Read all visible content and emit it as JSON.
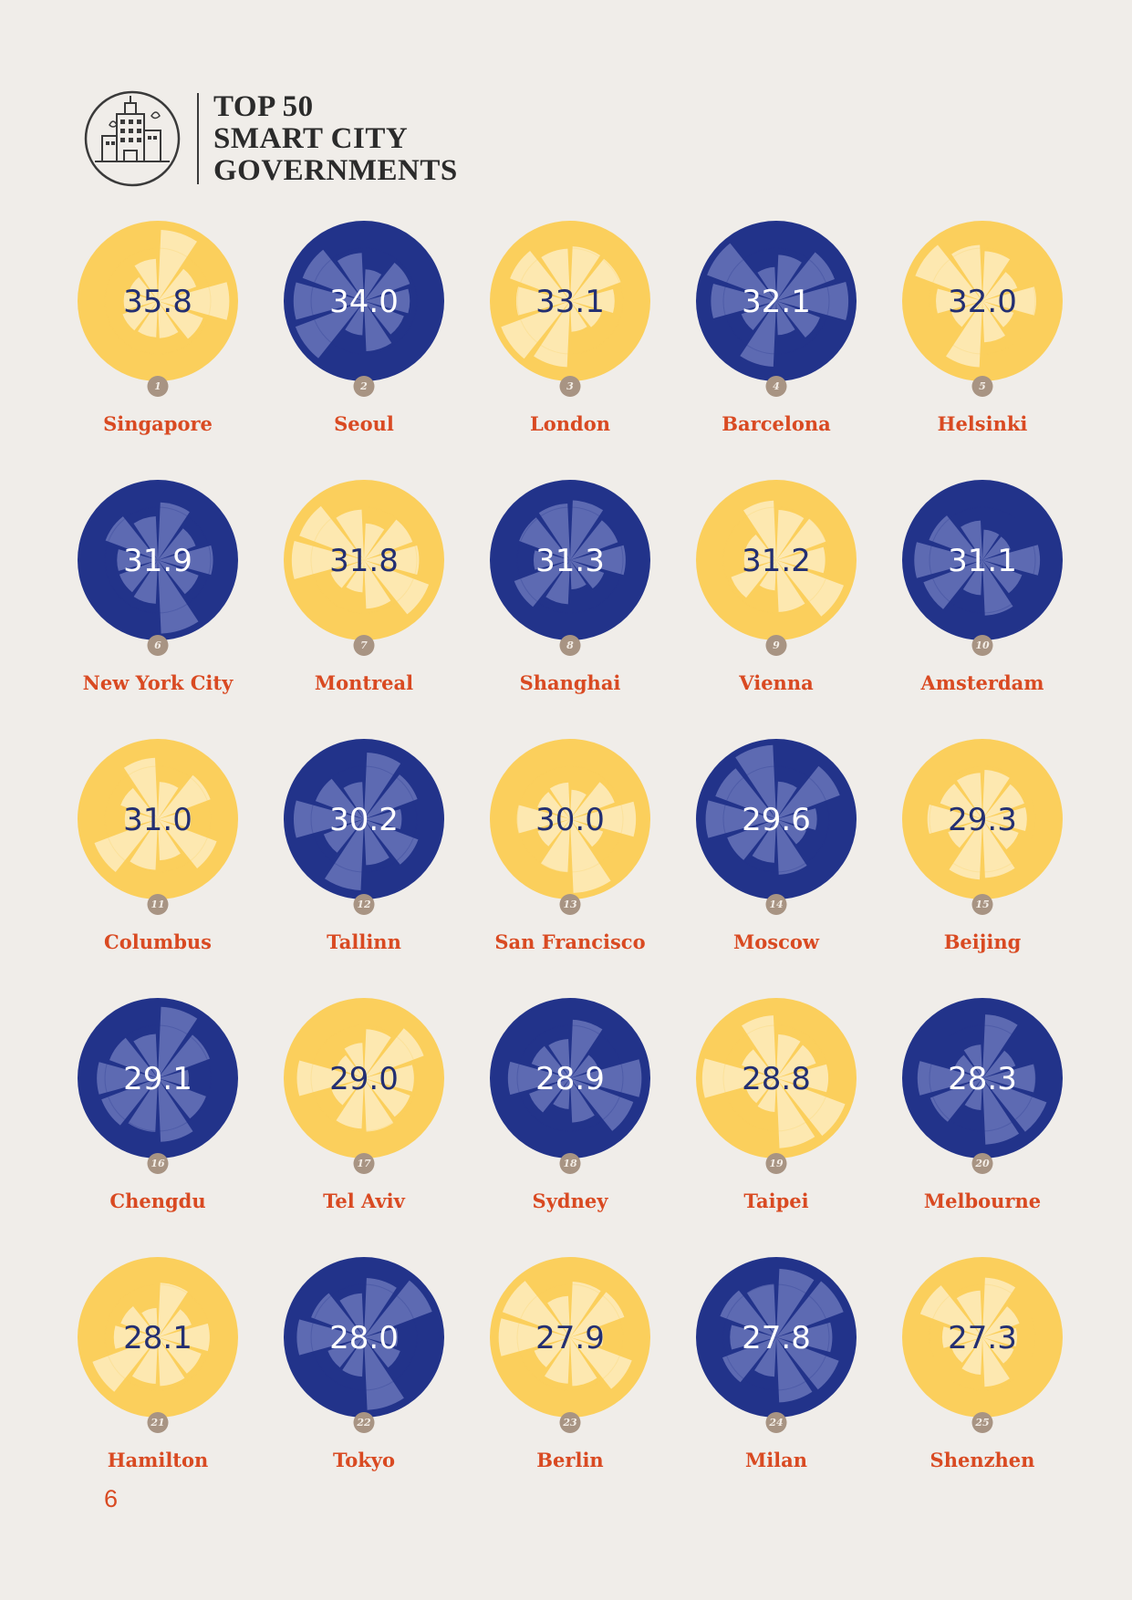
{
  "header": {
    "title_lines": [
      "TOP 50",
      "SMART CITY",
      "GOVERNMENTS"
    ]
  },
  "cities": [
    {
      "rank": "1",
      "name": "Singapore",
      "score": "35.8",
      "theme": "yellow"
    },
    {
      "rank": "2",
      "name": "Seoul",
      "score": "34.0",
      "theme": "blue"
    },
    {
      "rank": "3",
      "name": "London",
      "score": "33.1",
      "theme": "yellow"
    },
    {
      "rank": "4",
      "name": "Barcelona",
      "score": "32.1",
      "theme": "blue"
    },
    {
      "rank": "5",
      "name": "Helsinki",
      "score": "32.0",
      "theme": "yellow"
    },
    {
      "rank": "6",
      "name": "New York City",
      "score": "31.9",
      "theme": "blue"
    },
    {
      "rank": "7",
      "name": "Montreal",
      "score": "31.8",
      "theme": "yellow"
    },
    {
      "rank": "8",
      "name": "Shanghai",
      "score": "31.3",
      "theme": "blue"
    },
    {
      "rank": "9",
      "name": "Vienna",
      "score": "31.2",
      "theme": "yellow"
    },
    {
      "rank": "10",
      "name": "Amsterdam",
      "score": "31.1",
      "theme": "blue"
    },
    {
      "rank": "11",
      "name": "Columbus",
      "score": "31.0",
      "theme": "yellow"
    },
    {
      "rank": "12",
      "name": "Tallinn",
      "score": "30.2",
      "theme": "blue"
    },
    {
      "rank": "13",
      "name": "San Francisco",
      "score": "30.0",
      "theme": "yellow"
    },
    {
      "rank": "14",
      "name": "Moscow",
      "score": "29.6",
      "theme": "blue"
    },
    {
      "rank": "15",
      "name": "Beijing",
      "score": "29.3",
      "theme": "yellow"
    },
    {
      "rank": "16",
      "name": "Chengdu",
      "score": "29.1",
      "theme": "blue"
    },
    {
      "rank": "17",
      "name": "Tel Aviv",
      "score": "29.0",
      "theme": "yellow"
    },
    {
      "rank": "18",
      "name": "Sydney",
      "score": "28.9",
      "theme": "blue"
    },
    {
      "rank": "19",
      "name": "Taipei",
      "score": "28.8",
      "theme": "yellow"
    },
    {
      "rank": "20",
      "name": "Melbourne",
      "score": "28.3",
      "theme": "blue"
    },
    {
      "rank": "21",
      "name": "Hamilton",
      "score": "28.1",
      "theme": "yellow"
    },
    {
      "rank": "22",
      "name": "Tokyo",
      "score": "28.0",
      "theme": "blue"
    },
    {
      "rank": "23",
      "name": "Berlin",
      "score": "27.9",
      "theme": "yellow"
    },
    {
      "rank": "24",
      "name": "Milan",
      "score": "27.8",
      "theme": "blue"
    },
    {
      "rank": "25",
      "name": "Shenzhen",
      "score": "27.3",
      "theme": "yellow"
    }
  ],
  "colors": {
    "yellow_bg": "#fbcf5c",
    "yellow_petal": "#fde8b0",
    "blue_bg": "#22338a",
    "blue_petal": "#5d6ab2",
    "score_on_yellow": "#232f72",
    "score_on_blue": "#ffffff",
    "city_text": "#d94a22",
    "badge": "#a89483"
  },
  "footer": {
    "page_number": "6"
  }
}
